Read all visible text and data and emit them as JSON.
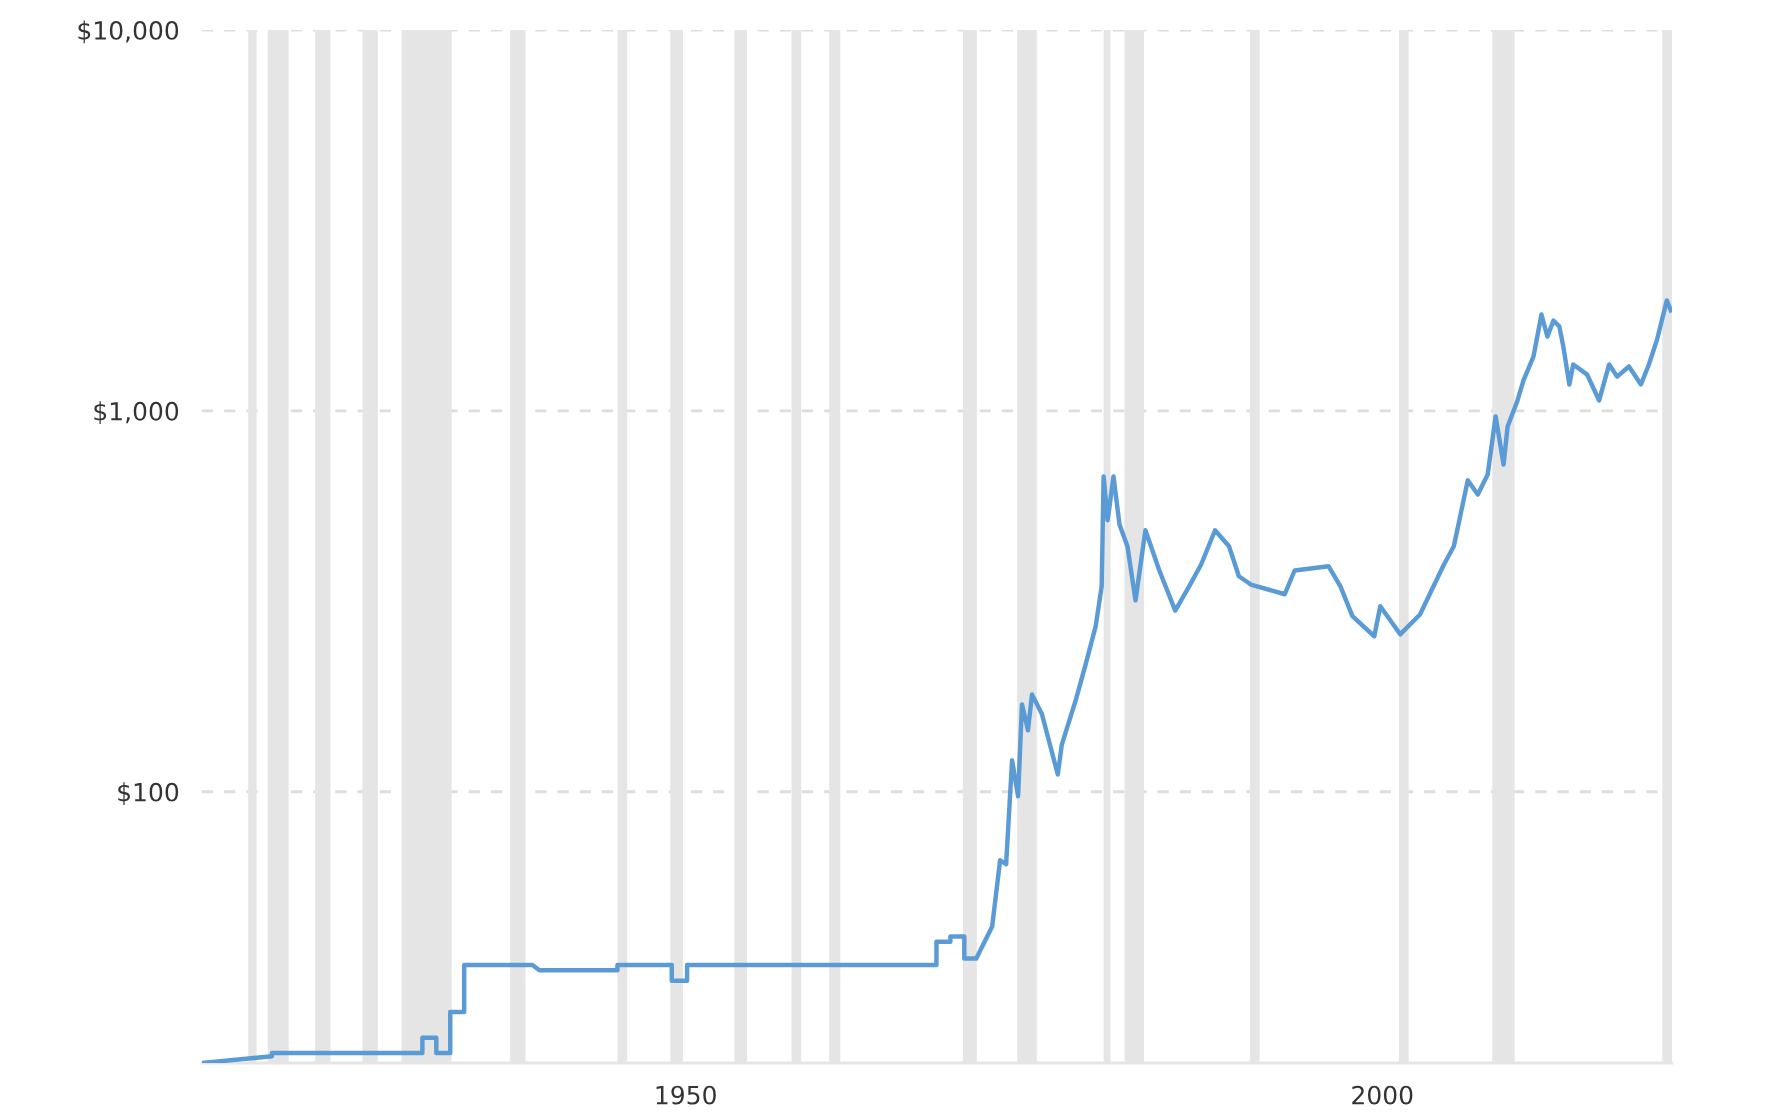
{
  "chart_data": {
    "type": "line",
    "x": [
      1915.28,
      1920.3,
      1920.3,
      1931.1,
      1931.1,
      1932.1,
      1932.1,
      1933.1,
      1933.1,
      1934.1,
      1934.1,
      1939.0,
      1939.5,
      1945.1,
      1945.1,
      1949.0,
      1949.0,
      1950.1,
      1950.1,
      1968.0,
      1968.0,
      1969.0,
      1969.0,
      1970.0,
      1970.0,
      1970.86,
      1972.0,
      1972.57,
      1973.0,
      1973.43,
      1973.86,
      1974.14,
      1974.57,
      1974.86,
      1975.57,
      1976.71,
      1977.0,
      1978.0,
      1978.71,
      1979.43,
      1979.86,
      1980.0,
      1980.29,
      1980.71,
      1981.14,
      1981.71,
      1982.29,
      1983.0,
      1984.0,
      1985.14,
      1986.14,
      1987.0,
      1988.0,
      1989.0,
      1989.71,
      1990.57,
      1993.0,
      1993.71,
      1996.14,
      1997.0,
      1997.86,
      1999.43,
      1999.86,
      2001.29,
      2002.71,
      2004.43,
      2005.14,
      2006.14,
      2006.86,
      2007.57,
      2008.14,
      2008.71,
      2009.0,
      2009.71,
      2010.14,
      2010.86,
      2011.43,
      2011.86,
      2012.29,
      2012.71,
      2013.0,
      2013.43,
      2013.71,
      2014.71,
      2015.57,
      2016.29,
      2016.86,
      2017.71,
      2018.57,
      2019.14,
      2019.71,
      2020.43,
      2020.71
    ],
    "series": [
      {
        "color": "#5b9bd5",
        "values": [
          19.4,
          20.2,
          20.6,
          20.6,
          22.6,
          22.6,
          20.6,
          20.6,
          26.4,
          26.4,
          35.1,
          35.1,
          34.0,
          34.0,
          35.1,
          35.1,
          31.9,
          31.9,
          35.1,
          35.1,
          40.4,
          40.4,
          41.7,
          41.7,
          36.5,
          36.5,
          44.3,
          66.1,
          64.5,
          120.9,
          97.3,
          169.6,
          145,
          180,
          160,
          111,
          133,
          174,
          216,
          272,
          346,
          673,
          516,
          673,
          503,
          441,
          318,
          486,
          381,
          299,
          346,
          395,
          486,
          441,
          368,
          350,
          330,
          381,
          391,
          346,
          289,
          256,
          307,
          259,
          292,
          395,
          441,
          657,
          603,
          681,
          967,
          723,
          910,
          1065,
          1202,
          1390,
          1791,
          1567,
          1726,
          1667,
          1476,
          1173,
          1324,
          1245,
          1065,
          1324,
          1230,
          1308,
          1173,
          1324,
          1531,
          1950,
          1837
        ]
      }
    ],
    "xlim": [
      1915.28,
      2020.8
    ],
    "xticks": [
      1950,
      2000
    ],
    "ylim": [
      19.4,
      10000
    ],
    "yticks": [
      {
        "value": 100,
        "label": "$100"
      },
      {
        "value": 1000,
        "label": "$1,000"
      },
      {
        "value": 10000,
        "label": "$10,000"
      }
    ],
    "log": true,
    "grid": "y",
    "bands": [
      {
        "axis": "x",
        "from": 1918.6,
        "to": 1919.2,
        "color": "#e5e5e5"
      },
      {
        "axis": "x",
        "from": 1920.0,
        "to": 1921.5,
        "color": "#e5e5e5"
      },
      {
        "axis": "x",
        "from": 1923.4,
        "to": 1924.5,
        "color": "#e5e5e5"
      },
      {
        "axis": "x",
        "from": 1926.8,
        "to": 1927.9,
        "color": "#e5e5e5"
      },
      {
        "axis": "x",
        "from": 1929.6,
        "to": 1933.2,
        "color": "#e5e5e5"
      },
      {
        "axis": "x",
        "from": 1937.4,
        "to": 1938.5,
        "color": "#e5e5e5"
      },
      {
        "axis": "x",
        "from": 1945.1,
        "to": 1945.8,
        "color": "#e5e5e5"
      },
      {
        "axis": "x",
        "from": 1948.9,
        "to": 1949.8,
        "color": "#e5e5e5"
      },
      {
        "axis": "x",
        "from": 1953.5,
        "to": 1954.4,
        "color": "#e5e5e5"
      },
      {
        "axis": "x",
        "from": 1957.6,
        "to": 1958.3,
        "color": "#e5e5e5"
      },
      {
        "axis": "x",
        "from": 1960.3,
        "to": 1961.1,
        "color": "#e5e5e5"
      },
      {
        "axis": "x",
        "from": 1969.9,
        "to": 1970.9,
        "color": "#e5e5e5"
      },
      {
        "axis": "x",
        "from": 1973.8,
        "to": 1975.2,
        "color": "#e5e5e5"
      },
      {
        "axis": "x",
        "from": 1980.0,
        "to": 1980.5,
        "color": "#e5e5e5"
      },
      {
        "axis": "x",
        "from": 1981.5,
        "to": 1982.9,
        "color": "#e5e5e5"
      },
      {
        "axis": "x",
        "from": 1990.5,
        "to": 1991.2,
        "color": "#e5e5e5"
      },
      {
        "axis": "x",
        "from": 2001.2,
        "to": 2001.9,
        "color": "#e5e5e5"
      },
      {
        "axis": "x",
        "from": 2007.9,
        "to": 2009.5,
        "color": "#e5e5e5"
      },
      {
        "axis": "x",
        "from": 2020.1,
        "to": 2020.8,
        "color": "#e5e5e5"
      }
    ]
  }
}
